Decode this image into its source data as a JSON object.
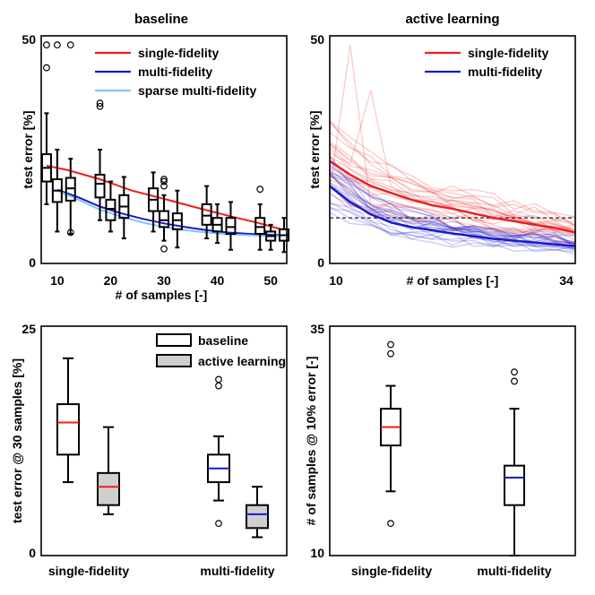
{
  "colors": {
    "single": "#ee1c1c",
    "multi": "#1818cc",
    "sparse": "#7ec8f0",
    "box_face_al": "#cfcfcf",
    "dash": "#333333"
  },
  "chart_data": [
    {
      "id": "baseline",
      "type": "box+line",
      "title": "baseline",
      "xlabel": "# of samples [-]",
      "ylabel": "test error [%]",
      "xlim": [
        7,
        53
      ],
      "ylim": [
        0,
        50
      ],
      "xticks": [
        10,
        20,
        30,
        40,
        50
      ],
      "yticks": [
        0,
        50
      ],
      "legend": [
        "single-fidelity",
        "multi-fidelity",
        "sparse multi-fidelity"
      ],
      "legend_loc": "top-right",
      "lines": [
        {
          "name": "single-fidelity",
          "x": [
            8,
            12,
            18,
            24,
            30,
            36,
            42,
            48,
            52
          ],
          "y": [
            21.5,
            20.5,
            18.5,
            16.0,
            14.2,
            12.3,
            10.5,
            8.8,
            7.5
          ]
        },
        {
          "name": "multi-fidelity",
          "x": [
            10,
            14,
            18,
            22,
            26,
            30,
            34,
            38,
            42,
            46,
            50,
            52
          ],
          "y": [
            16.2,
            14.5,
            12.5,
            11.0,
            9.8,
            8.8,
            8.0,
            7.3,
            6.8,
            6.5,
            6.3,
            6.2
          ]
        },
        {
          "name": "sparse multi-fidelity",
          "x": [
            10,
            14,
            18,
            22,
            26,
            30,
            34,
            38,
            42,
            46,
            50,
            52
          ],
          "y": [
            16.0,
            14.0,
            11.8,
            10.3,
            9.0,
            8.0,
            7.3,
            6.8,
            6.4,
            6.2,
            6.0,
            6.0
          ]
        }
      ],
      "boxes": [
        {
          "x": 8.0,
          "q1": 18.0,
          "med": 21.0,
          "q3": 24.0,
          "lo": 13.0,
          "hi": 33.0,
          "out": [
            43,
            48
          ]
        },
        {
          "x": 10.0,
          "q1": 13.5,
          "med": 16.0,
          "q3": 18.5,
          "lo": 7.0,
          "hi": 25.0,
          "out": [
            48
          ]
        },
        {
          "x": 12.5,
          "q1": 13.8,
          "med": 16.5,
          "q3": 18.8,
          "lo": 6.5,
          "hi": 23.0,
          "out": [
            48,
            6.8
          ]
        },
        {
          "x": 18.0,
          "q1": 14.5,
          "med": 17.5,
          "q3": 19.5,
          "lo": 9.5,
          "hi": 25.0,
          "out": [
            34.5,
            35.2
          ]
        },
        {
          "x": 20.0,
          "q1": 9.5,
          "med": 12.0,
          "q3": 14.0,
          "lo": 7.0,
          "hi": 18.0,
          "out": []
        },
        {
          "x": 22.5,
          "q1": 10.0,
          "med": 12.5,
          "q3": 15.0,
          "lo": 5.5,
          "hi": 19.0,
          "out": []
        },
        {
          "x": 28.0,
          "q1": 11.5,
          "med": 14.0,
          "q3": 16.5,
          "lo": 7.0,
          "hi": 20.0,
          "out": []
        },
        {
          "x": 30.0,
          "q1": 8.0,
          "med": 9.5,
          "q3": 11.5,
          "lo": 5.0,
          "hi": 15.0,
          "out": [
            3.2,
            17.0,
            18.0,
            18.5
          ]
        },
        {
          "x": 32.5,
          "q1": 7.5,
          "med": 9.5,
          "q3": 11.0,
          "lo": 3.5,
          "hi": 16.0,
          "out": []
        },
        {
          "x": 38.0,
          "q1": 8.5,
          "med": 10.5,
          "q3": 13.0,
          "lo": 5.5,
          "hi": 17.0,
          "out": []
        },
        {
          "x": 40.0,
          "q1": 7.0,
          "med": 8.5,
          "q3": 10.0,
          "lo": 4.5,
          "hi": 13.0,
          "out": []
        },
        {
          "x": 42.5,
          "q1": 6.5,
          "med": 8.0,
          "q3": 10.0,
          "lo": 3.0,
          "hi": 13.5,
          "out": []
        },
        {
          "x": 48.0,
          "q1": 6.5,
          "med": 8.0,
          "q3": 10.0,
          "lo": 3.0,
          "hi": 13.0,
          "out": [
            16.3
          ]
        },
        {
          "x": 50.0,
          "q1": 5.0,
          "med": 6.0,
          "q3": 7.0,
          "lo": 3.0,
          "hi": 8.5,
          "out": []
        },
        {
          "x": 52.5,
          "q1": 5.0,
          "med": 6.2,
          "q3": 7.5,
          "lo": 2.5,
          "hi": 10.0,
          "out": []
        }
      ]
    },
    {
      "id": "active",
      "type": "line",
      "title": "active learning",
      "xlabel": "# of samples [-]",
      "ylabel": "test error [%]",
      "xlim": [
        10,
        34
      ],
      "ylim": [
        0,
        50
      ],
      "xticks": [
        10,
        34
      ],
      "yticks": [
        0,
        50
      ],
      "legend": [
        "single-fidelity",
        "multi-fidelity"
      ],
      "legend_loc": "top-right",
      "threshold": 10,
      "series": [
        {
          "name": "single-fidelity",
          "x": [
            10,
            12,
            14,
            16,
            18,
            20,
            22,
            24,
            26,
            28,
            30,
            32,
            34
          ],
          "y": [
            22.5,
            19.5,
            17.0,
            15.5,
            14.0,
            12.8,
            12.0,
            11.0,
            10.0,
            9.3,
            8.5,
            7.8,
            6.8
          ]
        },
        {
          "name": "multi-fidelity",
          "x": [
            10,
            12,
            14,
            16,
            18,
            20,
            22,
            24,
            26,
            28,
            30,
            32,
            34
          ],
          "y": [
            17.0,
            13.5,
            10.8,
            9.0,
            8.0,
            7.3,
            6.6,
            6.0,
            5.4,
            5.0,
            4.6,
            4.2,
            3.8
          ]
        }
      ]
    },
    {
      "id": "error30",
      "type": "box",
      "title": "",
      "xlabel": "",
      "ylabel": "test error @ 30 samples [%]",
      "ylim": [
        0,
        25
      ],
      "yticks": [
        0,
        25
      ],
      "categories": [
        "single-fidelity",
        "multi-fidelity"
      ],
      "legend": [
        "baseline",
        "active learning"
      ],
      "legend_loc": "top-right",
      "boxes": [
        {
          "group": "single-fidelity",
          "kind": "baseline",
          "q1": 11.0,
          "med": 14.5,
          "q3": 16.5,
          "lo": 8.0,
          "hi": 21.5,
          "out": []
        },
        {
          "group": "single-fidelity",
          "kind": "active learning",
          "q1": 5.5,
          "med": 7.5,
          "q3": 9.0,
          "lo": 4.5,
          "hi": 14.0,
          "out": []
        },
        {
          "group": "multi-fidelity",
          "kind": "baseline",
          "q1": 8.0,
          "med": 9.5,
          "q3": 11.0,
          "lo": 6.0,
          "hi": 13.0,
          "out": [
            18.5,
            19.2,
            3.5
          ]
        },
        {
          "group": "multi-fidelity",
          "kind": "active learning",
          "q1": 3.0,
          "med": 4.5,
          "q3": 5.5,
          "lo": 2.0,
          "hi": 7.5,
          "out": []
        }
      ]
    },
    {
      "id": "samples10",
      "type": "box",
      "title": "",
      "xlabel": "",
      "ylabel": "# of samples @ 10% error [-]",
      "ylim": [
        10,
        35
      ],
      "yticks": [
        10,
        35
      ],
      "categories": [
        "single-fidelity",
        "multi-fidelity"
      ],
      "boxes": [
        {
          "group": "single-fidelity",
          "kind": "baseline",
          "q1": 22.0,
          "med": 24.0,
          "q3": 26.0,
          "lo": 17.0,
          "hi": 28.5,
          "out": [
            32.0,
            33.0,
            13.5
          ]
        },
        {
          "group": "multi-fidelity",
          "kind": "baseline",
          "q1": 15.5,
          "med": 18.5,
          "q3": 19.8,
          "lo": 10.0,
          "hi": 26.0,
          "out": [
            29.0,
            30.0
          ]
        }
      ]
    }
  ]
}
